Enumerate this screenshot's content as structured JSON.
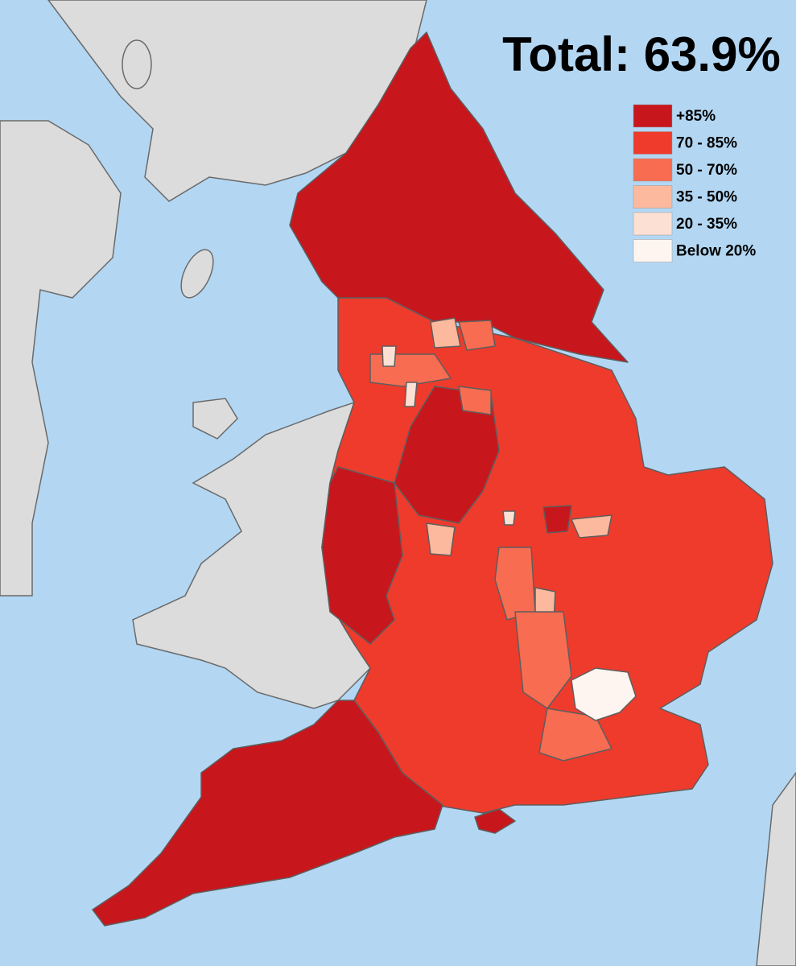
{
  "title": "Total: 63.9%",
  "legend": [
    {
      "label": "+85%",
      "color": "#c8161d"
    },
    {
      "label": "70 - 85%",
      "color": "#ee3b2c"
    },
    {
      "label": "50 - 70%",
      "color": "#f86c51"
    },
    {
      "label": "35 - 50%",
      "color": "#fcb99d"
    },
    {
      "label": "20 - 35%",
      "color": "#fde0d4"
    },
    {
      "label": "Below 20%",
      "color": "#fff5f0"
    }
  ]
}
